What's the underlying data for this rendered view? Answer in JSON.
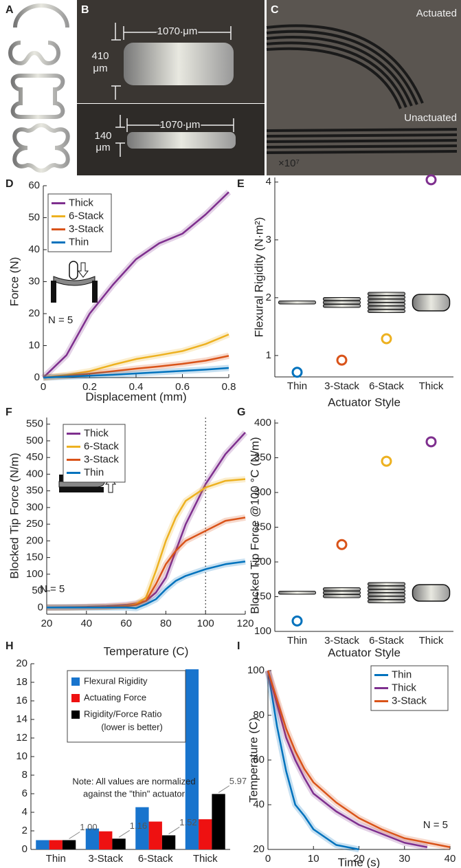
{
  "photos": [
    {
      "panel_label": "A"
    },
    {
      "panel_label": "B",
      "width_top": "1070 μm",
      "height_top": [
        "410",
        "μm"
      ],
      "width_bottom": "1070 μm",
      "height_bottom": [
        "140",
        "μm"
      ]
    },
    {
      "panel_label": "C",
      "annotations": [
        "Actuated",
        "Unactuated"
      ]
    }
  ],
  "chart_data": [
    {
      "type": "line",
      "panel_label": "D",
      "xlabel": "Displacement (mm)",
      "ylabel": "Force (N)",
      "annotation": "N = 5",
      "legend": "upper left",
      "x": [
        0,
        0.1,
        0.2,
        0.3,
        0.4,
        0.5,
        0.6,
        0.7,
        0.8
      ],
      "series": [
        {
          "name": "Thick",
          "color": "#7e2f8e",
          "values": [
            0,
            7,
            20,
            29,
            37,
            42,
            45,
            51,
            58
          ]
        },
        {
          "name": "6-Stack",
          "color": "#edb120",
          "values": [
            0,
            0.8,
            2,
            4,
            5.8,
            7,
            8.3,
            10.5,
            13.5
          ]
        },
        {
          "name": "3-Stack",
          "color": "#d95319",
          "values": [
            0,
            0.5,
            1.2,
            2,
            2.8,
            3.5,
            4.3,
            5.3,
            6.8
          ]
        },
        {
          "name": "Thin",
          "color": "#0072bd",
          "values": [
            0,
            0.3,
            0.6,
            0.9,
            1.3,
            1.7,
            2.1,
            2.5,
            3
          ]
        }
      ],
      "xlim": [
        0,
        0.8
      ],
      "xticks": [
        0,
        0.2,
        0.4,
        0.6,
        0.8
      ],
      "ylim": [
        0,
        60
      ],
      "yticks": [
        0,
        10,
        20,
        30,
        40,
        50,
        60
      ]
    },
    {
      "type": "category_scatter",
      "panel_label": "E",
      "xlabel": "Actuator Style",
      "ylabel": "Flexural Rigidity (N·m²)",
      "y_multiplier": "×10⁷",
      "categories": [
        "Thin",
        "3-Stack",
        "6-Stack",
        "Thick"
      ],
      "values": [
        0.71,
        0.92,
        1.29,
        4.04
      ],
      "colors": [
        "#0072bd",
        "#d95319",
        "#edb120",
        "#7e2f8e"
      ],
      "ylim": [
        0.63,
        4.08
      ],
      "yticks": [
        1,
        2,
        3,
        4
      ]
    },
    {
      "type": "line",
      "panel_label": "F",
      "xlabel": "Temperature (C)",
      "ylabel": "Blocked Tip Force (N/m)",
      "annotation": "N = 5",
      "legend": "upper left",
      "vline": 100,
      "x": [
        20,
        30,
        40,
        50,
        60,
        65,
        70,
        75,
        80,
        85,
        90,
        100,
        110,
        120
      ],
      "series": [
        {
          "name": "Thick",
          "color": "#7e2f8e",
          "values": [
            0,
            1,
            2,
            4,
            8,
            12,
            20,
            45,
            90,
            170,
            250,
            370,
            460,
            525
          ]
        },
        {
          "name": "6-Stack",
          "color": "#edb120",
          "values": [
            0,
            0,
            1,
            2,
            5,
            10,
            30,
            110,
            200,
            270,
            320,
            360,
            380,
            385
          ]
        },
        {
          "name": "3-Stack",
          "color": "#d95319",
          "values": [
            0,
            0,
            1,
            2,
            4,
            8,
            20,
            70,
            130,
            170,
            200,
            230,
            260,
            270
          ]
        },
        {
          "name": "Thin",
          "color": "#0072bd",
          "values": [
            0,
            0,
            0,
            0,
            0,
            -2,
            10,
            25,
            55,
            80,
            95,
            115,
            130,
            138
          ]
        }
      ],
      "xlim": [
        20,
        120
      ],
      "xticks": [
        20,
        40,
        60,
        80,
        100,
        120
      ],
      "ylim": [
        -20,
        570
      ],
      "yticks": [
        0,
        50,
        100,
        150,
        200,
        250,
        300,
        350,
        400,
        450,
        500,
        550
      ]
    },
    {
      "type": "category_scatter",
      "panel_label": "G",
      "xlabel": "Actuator Style",
      "ylabel": "Blocked Tip Force @100 °C (N/m)",
      "categories": [
        "Thin",
        "3-Stack",
        "6-Stack",
        "Thick"
      ],
      "values": [
        115,
        225,
        345,
        373
      ],
      "colors": [
        "#0072bd",
        "#d95319",
        "#edb120",
        "#7e2f8e"
      ],
      "ylim": [
        100,
        405
      ],
      "yticks": [
        100,
        150,
        200,
        250,
        300,
        350,
        400
      ]
    },
    {
      "type": "bar",
      "panel_label": "H",
      "categories": [
        "Thin",
        "3-Stack",
        "6-Stack",
        "Thick"
      ],
      "series": [
        {
          "name": "Flexural Rigidity",
          "color": "#1874cd",
          "values": [
            1,
            2.25,
            4.55,
            19.4
          ]
        },
        {
          "name": "Actuating Force",
          "color": "#ee1111",
          "values": [
            1,
            1.95,
            3.0,
            3.25
          ]
        },
        {
          "name": "Rigidity/Force Ratio",
          "color": "#000000",
          "values": [
            1,
            1.16,
            1.52,
            5.97
          ],
          "value_labels": [
            "1.00",
            "1.16",
            "1.52",
            "5.97"
          ]
        }
      ],
      "legend_note": "(lower is better)",
      "note": [
        "Note: All values are normalized",
        "against the \"thin\" actuator"
      ],
      "ylim": [
        0,
        20
      ],
      "yticks": [
        0,
        2,
        4,
        6,
        8,
        10,
        12,
        14,
        16,
        18,
        20
      ]
    },
    {
      "type": "line",
      "panel_label": "I",
      "xlabel": "Time (s)",
      "ylabel": "Temperature (C)",
      "annotation": "N = 5",
      "legend": "upper right",
      "x": [
        0,
        2,
        4,
        6,
        8,
        10,
        15,
        20,
        25,
        30,
        35,
        40
      ],
      "series": [
        {
          "name": "Thin",
          "color": "#0072bd",
          "values": [
            100,
            75,
            55,
            40,
            35,
            29,
            22,
            20,
            null,
            null,
            null,
            null
          ]
        },
        {
          "name": "Thick",
          "color": "#7e2f8e",
          "values": [
            100,
            85,
            70,
            60,
            52,
            45,
            37,
            31,
            27,
            23,
            21,
            null
          ]
        },
        {
          "name": "3-Stack",
          "color": "#d95319",
          "values": [
            100,
            87,
            74,
            64,
            56,
            50,
            41,
            34,
            29,
            25,
            23,
            21
          ]
        }
      ],
      "xlim": [
        0,
        40
      ],
      "xticks": [
        0,
        10,
        20,
        30,
        40
      ],
      "ylim": [
        20,
        100
      ],
      "yticks": [
        20,
        40,
        60,
        80,
        100
      ]
    }
  ]
}
